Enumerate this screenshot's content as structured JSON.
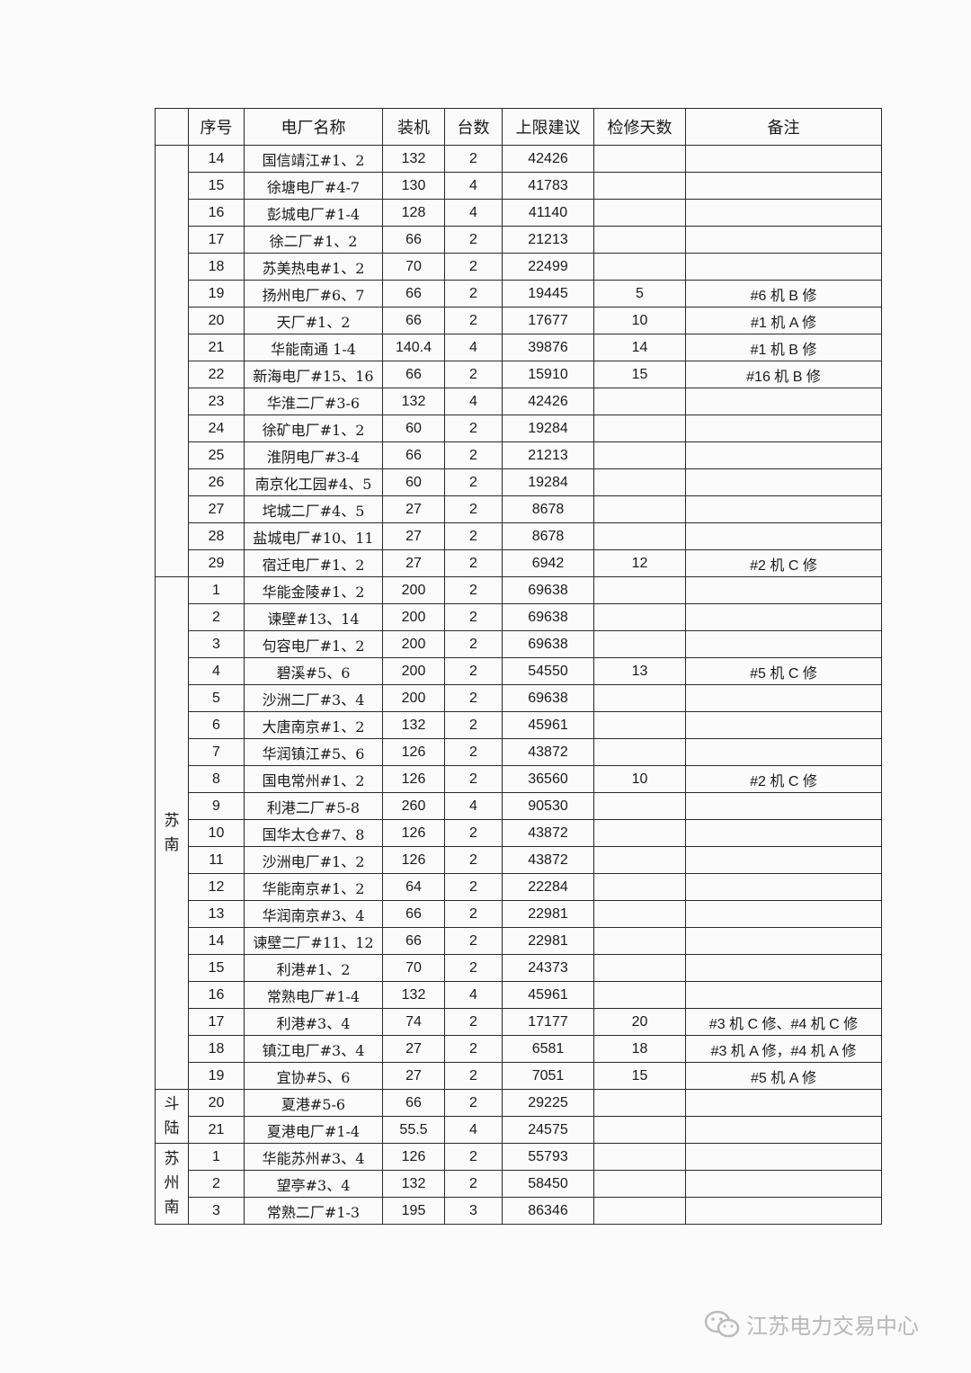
{
  "headers": [
    "",
    "序号",
    "电厂名称",
    "装机",
    "台数",
    "上限建议",
    "检修天数",
    "备注"
  ],
  "groups": [
    {
      "region": "",
      "rows": [
        [
          "14",
          "国信靖江#1、2",
          "132",
          "2",
          "42426",
          "",
          ""
        ],
        [
          "15",
          "徐塘电厂#4-7",
          "130",
          "4",
          "41783",
          "",
          ""
        ],
        [
          "16",
          "彭城电厂#1-4",
          "128",
          "4",
          "41140",
          "",
          ""
        ],
        [
          "17",
          "徐二厂#1、2",
          "66",
          "2",
          "21213",
          "",
          ""
        ],
        [
          "18",
          "苏美热电#1、2",
          "70",
          "2",
          "22499",
          "",
          ""
        ],
        [
          "19",
          "扬州电厂#6、7",
          "66",
          "2",
          "19445",
          "5",
          "#6 机 B 修"
        ],
        [
          "20",
          "天厂#1、2",
          "66",
          "2",
          "17677",
          "10",
          "#1 机 A 修"
        ],
        [
          "21",
          "华能南通 1-4",
          "140.4",
          "4",
          "39876",
          "14",
          "#1 机 B 修"
        ],
        [
          "22",
          "新海电厂#15、16",
          "66",
          "2",
          "15910",
          "15",
          "#16 机 B 修"
        ],
        [
          "23",
          "华淮二厂#3-6",
          "132",
          "4",
          "42426",
          "",
          ""
        ],
        [
          "24",
          "徐矿电厂#1、2",
          "60",
          "2",
          "19284",
          "",
          ""
        ],
        [
          "25",
          "淮阴电厂#3-4",
          "66",
          "2",
          "21213",
          "",
          ""
        ],
        [
          "26",
          "南京化工园#4、5",
          "60",
          "2",
          "19284",
          "",
          ""
        ],
        [
          "27",
          "垞城二厂#4、5",
          "27",
          "2",
          "8678",
          "",
          ""
        ],
        [
          "28",
          "盐城电厂#10、11",
          "27",
          "2",
          "8678",
          "",
          ""
        ],
        [
          "29",
          "宿迁电厂#1、2",
          "27",
          "2",
          "6942",
          "12",
          "#2 机 C 修"
        ]
      ]
    },
    {
      "region": "苏南",
      "rows": [
        [
          "1",
          "华能金陵#1、2",
          "200",
          "2",
          "69638",
          "",
          ""
        ],
        [
          "2",
          "谏壁#13、14",
          "200",
          "2",
          "69638",
          "",
          ""
        ],
        [
          "3",
          "句容电厂#1、2",
          "200",
          "2",
          "69638",
          "",
          ""
        ],
        [
          "4",
          "碧溪#5、6",
          "200",
          "2",
          "54550",
          "13",
          "#5 机 C 修"
        ],
        [
          "5",
          "沙洲二厂#3、4",
          "200",
          "2",
          "69638",
          "",
          ""
        ],
        [
          "6",
          "大唐南京#1、2",
          "132",
          "2",
          "45961",
          "",
          ""
        ],
        [
          "7",
          "华润镇江#5、6",
          "126",
          "2",
          "43872",
          "",
          ""
        ],
        [
          "8",
          "国电常州#1、2",
          "126",
          "2",
          "36560",
          "10",
          "#2 机 C 修"
        ],
        [
          "9",
          "利港二厂#5-8",
          "260",
          "4",
          "90530",
          "",
          ""
        ],
        [
          "10",
          "国华太仓#7、8",
          "126",
          "2",
          "43872",
          "",
          ""
        ],
        [
          "11",
          "沙洲电厂#1、2",
          "126",
          "2",
          "43872",
          "",
          ""
        ],
        [
          "12",
          "华能南京#1、2",
          "64",
          "2",
          "22284",
          "",
          ""
        ],
        [
          "13",
          "华润南京#3、4",
          "66",
          "2",
          "22981",
          "",
          ""
        ],
        [
          "14",
          "谏壁二厂#11、12",
          "66",
          "2",
          "22981",
          "",
          ""
        ],
        [
          "15",
          "利港#1、2",
          "70",
          "2",
          "24373",
          "",
          ""
        ],
        [
          "16",
          "常熟电厂#1-4",
          "132",
          "4",
          "45961",
          "",
          ""
        ],
        [
          "17",
          "利港#3、4",
          "74",
          "2",
          "17177",
          "20",
          "#3 机 C 修、#4 机 C 修"
        ],
        [
          "18",
          "镇江电厂#3、4",
          "27",
          "2",
          "6581",
          "18",
          "#3 机 A 修，#4 机 A 修"
        ],
        [
          "19",
          "宜协#5、6",
          "27",
          "2",
          "7051",
          "15",
          "#5 机 A 修"
        ]
      ]
    },
    {
      "region": "斗陆",
      "rows": [
        [
          "20",
          "夏港#5-6",
          "66",
          "2",
          "29225",
          "",
          ""
        ],
        [
          "21",
          "夏港电厂#1-4",
          "55.5",
          "4",
          "24575",
          "",
          ""
        ]
      ]
    },
    {
      "region": "苏州南",
      "rows": [
        [
          "1",
          "华能苏州#3、4",
          "126",
          "2",
          "55793",
          "",
          ""
        ],
        [
          "2",
          "望亭#3、4",
          "132",
          "2",
          "58450",
          "",
          ""
        ],
        [
          "3",
          "常熟二厂#1-3",
          "195",
          "3",
          "86346",
          "",
          ""
        ]
      ]
    }
  ],
  "watermark": {
    "text": "江苏电力交易中心",
    "icon": "wechat-icon"
  }
}
